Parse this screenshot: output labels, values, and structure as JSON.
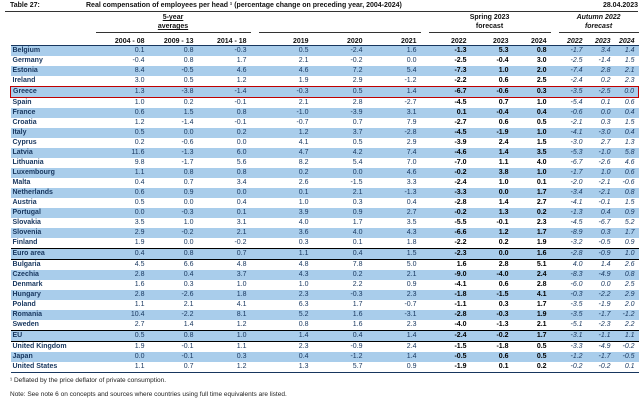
{
  "header": {
    "table_label": "Table 27:",
    "title": "Real compensation of employees per head ¹ (percentage change on preceding year, 2004-2024)",
    "date": "28.04.2023"
  },
  "columns": {
    "group1": [
      "5-year",
      "averages"
    ],
    "group3": [
      "Spring 2023",
      "forecast"
    ],
    "group4": [
      "Autumn 2022",
      "forecast"
    ],
    "years": [
      "2004 - 08",
      "2009 - 13",
      "2014 - 18",
      "2019",
      "2020",
      "2021",
      "2022",
      "2023",
      "2024",
      "2022",
      "2023",
      "2024"
    ]
  },
  "colors": {
    "row_blue": "#A9CDEB",
    "text_navy": "#17365E",
    "highlight_red": "#C00000"
  },
  "rows": [
    {
      "name": "Belgium",
      "values": [
        "0.1",
        "0.8",
        "-0.3",
        "0.5",
        "-2.4",
        "1.6",
        "-1.3",
        "5.3",
        "0.8",
        "-1.7",
        "3.4",
        "1.4"
      ]
    },
    {
      "name": "Germany",
      "values": [
        "-0.4",
        "0.8",
        "1.7",
        "2.1",
        "-0.2",
        "0.0",
        "-2.5",
        "-0.4",
        "3.0",
        "-2.5",
        "-1.4",
        "1.5"
      ]
    },
    {
      "name": "Estonia",
      "values": [
        "8.4",
        "-0.5",
        "4.6",
        "4.6",
        "7.2",
        "5.4",
        "-7.3",
        "1.0",
        "2.0",
        "-7.4",
        "2.8",
        "2.1"
      ]
    },
    {
      "name": "Ireland",
      "values": [
        "3.0",
        "0.5",
        "1.2",
        "1.9",
        "2.9",
        "-1.2",
        "-2.2",
        "0.6",
        "2.5",
        "-2.4",
        "0.2",
        "2.3"
      ]
    },
    {
      "name": "Greece",
      "values": [
        "1.3",
        "-3.8",
        "-1.4",
        "-0.3",
        "0.5",
        "1.4",
        "-6.7",
        "-0.6",
        "0.3",
        "-3.5",
        "-2.5",
        "0.0"
      ],
      "highlight": true
    },
    {
      "name": "Spain",
      "values": [
        "1.0",
        "0.2",
        "-0.1",
        "2.1",
        "2.8",
        "-2.7",
        "-4.5",
        "0.7",
        "1.0",
        "-5.4",
        "0.1",
        "0.6"
      ]
    },
    {
      "name": "France",
      "values": [
        "0.6",
        "1.5",
        "0.8",
        "-1.0",
        "-3.9",
        "3.1",
        "0.1",
        "-0.4",
        "0.4",
        "-0.6",
        "0.0",
        "0.4"
      ]
    },
    {
      "name": "Croatia",
      "values": [
        "1.2",
        "-1.4",
        "-0.1",
        "-0.7",
        "0.7",
        "7.9",
        "-2.7",
        "0.6",
        "0.5",
        "-2.1",
        "0.3",
        "1.5"
      ]
    },
    {
      "name": "Italy",
      "values": [
        "0.5",
        "0.0",
        "0.2",
        "1.2",
        "3.7",
        "-2.8",
        "-4.5",
        "-1.9",
        "1.0",
        "-4.1",
        "-3.0",
        "0.4"
      ]
    },
    {
      "name": "Cyprus",
      "values": [
        "0.2",
        "-0.6",
        "0.0",
        "4.1",
        "0.5",
        "2.9",
        "-3.9",
        "2.4",
        "1.5",
        "-3.0",
        "2.7",
        "1.3"
      ]
    },
    {
      "name": "Latvia",
      "values": [
        "11.6",
        "-1.3",
        "6.0",
        "4.7",
        "4.2",
        "7.4",
        "-4.6",
        "1.4",
        "3.5",
        "-5.3",
        "-1.0",
        "5.8"
      ]
    },
    {
      "name": "Lithuania",
      "values": [
        "9.8",
        "-1.7",
        "5.6",
        "8.2",
        "5.4",
        "7.0",
        "-7.0",
        "1.1",
        "4.0",
        "-6.7",
        "-2.6",
        "4.6"
      ]
    },
    {
      "name": "Luxembourg",
      "values": [
        "1.1",
        "0.8",
        "0.8",
        "0.2",
        "0.0",
        "4.6",
        "-0.2",
        "3.8",
        "1.0",
        "-1.7",
        "1.0",
        "0.6"
      ]
    },
    {
      "name": "Malta",
      "values": [
        "0.4",
        "0.7",
        "3.4",
        "2.6",
        "-1.5",
        "3.3",
        "-2.4",
        "1.0",
        "0.1",
        "-2.0",
        "-2.1",
        "-0.6"
      ]
    },
    {
      "name": "Netherlands",
      "values": [
        "0.6",
        "0.9",
        "0.0",
        "0.1",
        "2.1",
        "-1.3",
        "-3.3",
        "0.0",
        "1.7",
        "-3.4",
        "-2.1",
        "0.8"
      ]
    },
    {
      "name": "Austria",
      "values": [
        "0.5",
        "0.0",
        "0.4",
        "1.0",
        "0.3",
        "0.4",
        "-2.8",
        "1.4",
        "2.7",
        "-4.1",
        "-0.1",
        "1.5"
      ]
    },
    {
      "name": "Portugal",
      "values": [
        "0.0",
        "-0.3",
        "0.1",
        "3.9",
        "0.9",
        "2.7",
        "-0.2",
        "1.3",
        "0.2",
        "-1.3",
        "0.4",
        "0.9"
      ]
    },
    {
      "name": "Slovakia",
      "values": [
        "3.5",
        "1.0",
        "3.1",
        "4.0",
        "1.7",
        "3.5",
        "-5.5",
        "-0.1",
        "2.3",
        "-4.5",
        "-6.7",
        "5.2"
      ]
    },
    {
      "name": "Slovenia",
      "values": [
        "2.9",
        "-0.2",
        "2.1",
        "3.6",
        "4.0",
        "4.3",
        "-6.6",
        "1.2",
        "1.7",
        "-8.9",
        "0.3",
        "1.7"
      ]
    },
    {
      "name": "Finland",
      "values": [
        "1.9",
        "0.0",
        "-0.2",
        "0.3",
        "0.1",
        "1.8",
        "-2.2",
        "0.2",
        "1.9",
        "-3.2",
        "-0.5",
        "0.9"
      ]
    },
    {
      "name": "Euro area",
      "values": [
        "0.4",
        "0.8",
        "0.7",
        "1.1",
        "0.4",
        "1.5",
        "-2.3",
        "0.0",
        "1.6",
        "-2.8",
        "-0.9",
        "1.0"
      ],
      "separator": true
    },
    {
      "name": "Bulgaria",
      "values": [
        "4.5",
        "6.6",
        "4.8",
        "4.8",
        "7.8",
        "5.0",
        "1.6",
        "2.8",
        "5.1",
        "4.0",
        "1.4",
        "2.6"
      ]
    },
    {
      "name": "Czechia",
      "values": [
        "2.8",
        "0.4",
        "3.7",
        "4.3",
        "0.2",
        "2.1",
        "-9.0",
        "-4.0",
        "2.4",
        "-8.3",
        "-4.9",
        "0.8"
      ]
    },
    {
      "name": "Denmark",
      "values": [
        "1.6",
        "0.3",
        "1.0",
        "1.0",
        "2.2",
        "0.9",
        "-4.1",
        "0.6",
        "2.8",
        "-6.0",
        "0.0",
        "2.5"
      ]
    },
    {
      "name": "Hungary",
      "values": [
        "2.8",
        "-2.6",
        "1.8",
        "2.3",
        "-0.3",
        "2.3",
        "-1.8",
        "-1.5",
        "4.1",
        "-0.3",
        "-2.2",
        "2.9"
      ]
    },
    {
      "name": "Poland",
      "values": [
        "1.1",
        "2.1",
        "4.1",
        "6.3",
        "1.7",
        "-0.7",
        "-1.1",
        "0.3",
        "1.7",
        "-3.5",
        "-1.9",
        "2.0"
      ]
    },
    {
      "name": "Romania",
      "values": [
        "10.4",
        "-2.2",
        "8.1",
        "5.2",
        "1.6",
        "-3.1",
        "-2.8",
        "-0.3",
        "1.9",
        "-3.5",
        "-1.7",
        "-1.2"
      ]
    },
    {
      "name": "Sweden",
      "values": [
        "2.7",
        "1.4",
        "1.2",
        "0.8",
        "1.6",
        "2.3",
        "-4.0",
        "-1.3",
        "2.1",
        "-5.1",
        "-2.3",
        "2.2"
      ]
    },
    {
      "name": "EU",
      "values": [
        "0.5",
        "0.8",
        "1.0",
        "1.4",
        "0.4",
        "1.4",
        "-2.4",
        "-0.2",
        "1.7",
        "-3.1",
        "-1.1",
        "1.1"
      ],
      "separator": true
    },
    {
      "name": "United Kingdom",
      "values": [
        "1.9",
        "-0.1",
        "1.1",
        "2.3",
        "-0.9",
        "2.4",
        "-1.5",
        "-1.8",
        "0.5",
        "-3.3",
        "-4.9",
        "-0.2"
      ]
    },
    {
      "name": "Japan",
      "values": [
        "0.0",
        "-0.1",
        "0.3",
        "0.4",
        "-1.2",
        "1.4",
        "-0.5",
        "0.6",
        "0.5",
        "-1.2",
        "-1.7",
        "-0.5"
      ]
    },
    {
      "name": "United States",
      "values": [
        "1.1",
        "0.7",
        "1.2",
        "1.3",
        "5.7",
        "0.9",
        "-1.9",
        "0.1",
        "0.2",
        "-0.2",
        "-0.2",
        "0.1"
      ]
    }
  ],
  "footnotes": {
    "deflator": "¹ Deflated by the price deflator of private consumption.",
    "note": "Note: See note 6 on concepts and sources where countries using full time equivalents are listed."
  }
}
